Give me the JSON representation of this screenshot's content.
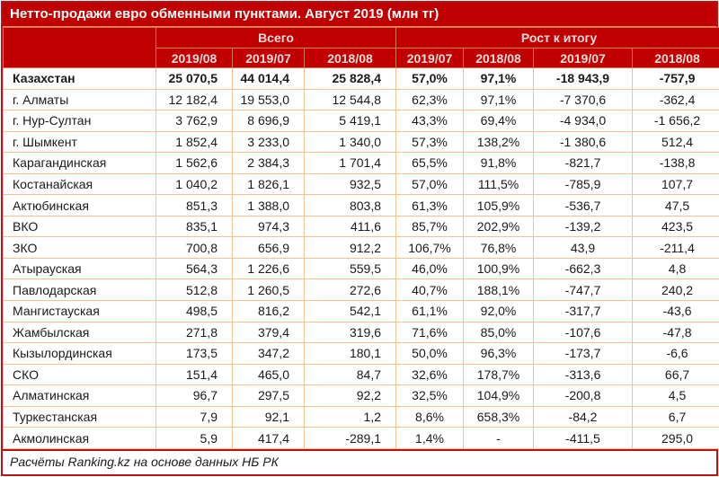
{
  "title": "Нетто-продажи евро обменными пунктами. Август 2019 (млн тг)",
  "table": {
    "corner_label": "",
    "group_headers": {
      "vsego": "Всего",
      "rost": "Рост к итогу"
    },
    "year_columns": [
      "2019/08",
      "2019/07",
      "2018/08",
      "2019/07",
      "2018/08",
      "2019/07",
      "2018/08"
    ]
  },
  "chart_data": {
    "type": "table",
    "title": "Нетто-продажи евро обменными пунктами. Август 2019 (млн тг)",
    "column_groups": [
      {
        "label": "Всего",
        "columns": [
          "2019/08",
          "2019/07",
          "2018/08"
        ]
      },
      {
        "label": "Рост к итогу",
        "columns": [
          "2019/07",
          "2018/08",
          "2019/07",
          "2018/08"
        ]
      }
    ],
    "rows": [
      {
        "region": "Казахстан",
        "bold": true,
        "values": [
          "25 070,5",
          "44 014,4",
          "25 828,4",
          "57,0%",
          "97,1%",
          "-18 943,9",
          "-757,9"
        ]
      },
      {
        "region": "г. Алматы",
        "bold": false,
        "values": [
          "12 182,4",
          "19 553,0",
          "12 544,8",
          "62,3%",
          "97,1%",
          "-7 370,6",
          "-362,4"
        ]
      },
      {
        "region": "г. Нур-Султан",
        "bold": false,
        "values": [
          "3 762,9",
          "8 696,9",
          "5 419,1",
          "43,3%",
          "69,4%",
          "-4 934,0",
          "-1 656,2"
        ]
      },
      {
        "region": "г. Шымкент",
        "bold": false,
        "values": [
          "1 852,4",
          "3 233,0",
          "1 340,0",
          "57,3%",
          "138,2%",
          "-1 380,6",
          "512,4"
        ]
      },
      {
        "region": "Карагандинская",
        "bold": false,
        "values": [
          "1 562,6",
          "2 384,3",
          "1 701,4",
          "65,5%",
          "91,8%",
          "-821,7",
          "-138,8"
        ]
      },
      {
        "region": "Костанайская",
        "bold": false,
        "values": [
          "1 040,2",
          "1 826,1",
          "932,5",
          "57,0%",
          "111,5%",
          "-785,9",
          "107,7"
        ]
      },
      {
        "region": "Актюбинская",
        "bold": false,
        "values": [
          "851,3",
          "1 388,0",
          "803,8",
          "61,3%",
          "105,9%",
          "-536,7",
          "47,5"
        ]
      },
      {
        "region": "ВКО",
        "bold": false,
        "values": [
          "835,1",
          "974,3",
          "411,6",
          "85,7%",
          "202,9%",
          "-139,2",
          "423,5"
        ]
      },
      {
        "region": "ЗКО",
        "bold": false,
        "values": [
          "700,8",
          "656,9",
          "912,2",
          "106,7%",
          "76,8%",
          "43,9",
          "-211,4"
        ]
      },
      {
        "region": "Атырауская",
        "bold": false,
        "values": [
          "564,3",
          "1 226,6",
          "559,5",
          "46,0%",
          "100,9%",
          "-662,3",
          "4,8"
        ]
      },
      {
        "region": "Павлодарская",
        "bold": false,
        "values": [
          "512,8",
          "1 260,5",
          "272,6",
          "40,7%",
          "188,1%",
          "-747,7",
          "240,2"
        ]
      },
      {
        "region": "Мангистауская",
        "bold": false,
        "values": [
          "498,5",
          "816,2",
          "542,1",
          "61,1%",
          "92,0%",
          "-317,7",
          "-43,6"
        ]
      },
      {
        "region": "Жамбылская",
        "bold": false,
        "values": [
          "271,8",
          "379,4",
          "319,6",
          "71,6%",
          "85,0%",
          "-107,6",
          "-47,8"
        ]
      },
      {
        "region": "Кызылординская",
        "bold": false,
        "values": [
          "173,5",
          "347,2",
          "180,1",
          "50,0%",
          "96,3%",
          "-173,7",
          "-6,6"
        ]
      },
      {
        "region": "СКО",
        "bold": false,
        "values": [
          "151,4",
          "465,0",
          "84,7",
          "32,6%",
          "178,7%",
          "-313,6",
          "66,7"
        ]
      },
      {
        "region": "Алматинская",
        "bold": false,
        "values": [
          "96,7",
          "297,5",
          "92,2",
          "32,5%",
          "104,9%",
          "-200,8",
          "4,5"
        ]
      },
      {
        "region": "Туркестанская",
        "bold": false,
        "values": [
          "7,9",
          "92,1",
          "1,2",
          "8,6%",
          "658,3%",
          "-84,2",
          "6,7"
        ]
      },
      {
        "region": "Акмолинская",
        "bold": false,
        "values": [
          "5,9",
          "417,4",
          "-289,1",
          "1,4%",
          "-",
          "-411,5",
          "295,0"
        ]
      }
    ]
  },
  "footer": "Расчёты Ranking.kz на основе данных НБ РК",
  "colors": {
    "header_bg": "#C00000",
    "header_text": "#F2DCDB",
    "title_text": "#FFFFFF",
    "cell_border": "#FBC08F",
    "outer_border": "#B81414",
    "data_text": "#1A1A1A"
  }
}
